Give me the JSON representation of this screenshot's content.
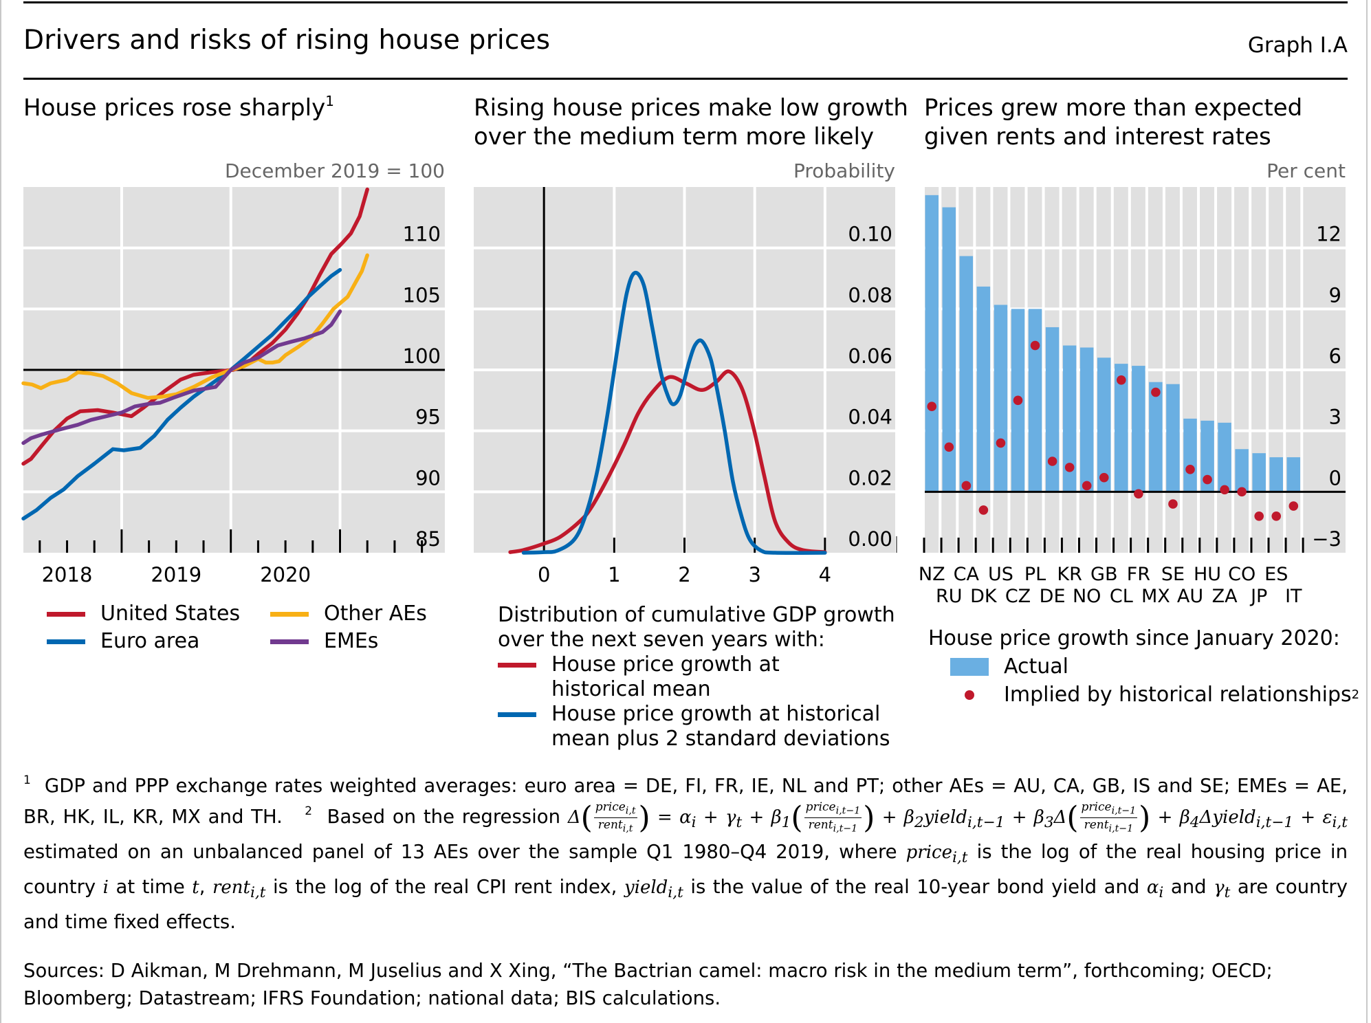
{
  "header": {
    "title": "Drivers and risks of rising house prices",
    "graph_id": "Graph I.A"
  },
  "colors": {
    "plot_bg": "#e0e0e0",
    "grid": "#ffffff",
    "united_states": "#c0192c",
    "euro_area": "#0067b1",
    "other_aes": "#f8b015",
    "emes": "#713a8f",
    "actual_bar": "#6aafe2",
    "implied_dot": "#c0192c",
    "unit_label": "#666666"
  },
  "panels": [
    {
      "title": "House prices rose sharply",
      "title_footnote": "1",
      "unit": "December 2019 = 100",
      "legend": [
        {
          "label": "United States",
          "series": "united_states"
        },
        {
          "label": "Euro area",
          "series": "euro_area"
        },
        {
          "label": "Other AEs",
          "series": "other_aes"
        },
        {
          "label": "EMEs",
          "series": "emes"
        }
      ]
    },
    {
      "title_lines": [
        "Rising house prices make low growth",
        "over the medium term more likely"
      ],
      "unit": "Probability",
      "legend_heading": [
        "Distribution of cumulative GDP growth",
        "over the next seven years with:"
      ],
      "legend": [
        {
          "lines": [
            "House price growth at",
            "historical mean"
          ],
          "series": "historical_mean"
        },
        {
          "lines": [
            "House price growth at historical",
            "mean plus 2 standard deviations"
          ],
          "series": "mean_plus_2sd"
        }
      ]
    },
    {
      "title_lines": [
        "Prices grew more than expected",
        "given rents and interest rates"
      ],
      "unit": "Per cent",
      "legend_heading": "House price growth since January 2020:",
      "legend": [
        {
          "label": "Actual",
          "series": "actual"
        },
        {
          "label": "Implied by historical relationships",
          "footnote": "2",
          "series": "implied"
        }
      ]
    }
  ],
  "chart_data": [
    {
      "type": "line",
      "title": "House prices rose sharply",
      "ylabel": "December 2019 = 100",
      "xlabel": "",
      "xlim": [
        2018.1,
        2021.96
      ],
      "ylim": [
        85,
        115
      ],
      "yticks": [
        85,
        90,
        95,
        100,
        105,
        110
      ],
      "xtick_labels": [
        {
          "label": "2018",
          "at": 2018.5
        },
        {
          "label": "2019",
          "at": 2019.5
        },
        {
          "label": "2020",
          "at": 2020.5
        }
      ],
      "major_ticks": [
        2019,
        2020,
        2021
      ],
      "minor_ticks": [
        2018.25,
        2018.5,
        2018.75,
        2019.25,
        2019.5,
        2019.75,
        2020.25,
        2020.5,
        2020.75,
        2021.25,
        2021.5,
        2021.75
      ],
      "reference_line": 100,
      "grid": true,
      "legend_position": "bottom",
      "series": [
        {
          "name": "United States",
          "key": "united_states",
          "x": [
            2018.1,
            2018.17,
            2018.27,
            2018.38,
            2018.5,
            2018.62,
            2018.78,
            2018.92,
            2019.09,
            2019.2,
            2019.4,
            2019.54,
            2019.66,
            2019.82,
            2020.02,
            2020.12,
            2020.25,
            2020.38,
            2020.5,
            2020.61,
            2020.71,
            2020.82,
            2020.92,
            2021.02,
            2021.1,
            2021.18,
            2021.25
          ],
          "y": [
            92.3,
            92.7,
            93.8,
            95.0,
            96.0,
            96.6,
            96.7,
            96.5,
            96.2,
            96.9,
            98.3,
            99.2,
            99.6,
            99.8,
            100.0,
            100.3,
            101.3,
            102.2,
            103.3,
            104.6,
            106.0,
            107.9,
            109.5,
            110.4,
            111.2,
            112.6,
            114.8
          ]
        },
        {
          "name": "Euro area",
          "key": "euro_area",
          "x": [
            2018.1,
            2018.22,
            2018.35,
            2018.47,
            2018.6,
            2018.75,
            2018.92,
            2019.02,
            2019.17,
            2019.3,
            2019.42,
            2019.54,
            2019.66,
            2019.83,
            2020.0,
            2020.12,
            2020.25,
            2020.38,
            2020.5,
            2020.6,
            2020.71,
            2020.82,
            2020.92,
            2021.0
          ],
          "y": [
            87.8,
            88.5,
            89.5,
            90.2,
            91.3,
            92.3,
            93.5,
            93.4,
            93.6,
            94.6,
            95.9,
            96.9,
            97.8,
            98.9,
            100.0,
            100.9,
            101.9,
            102.9,
            104.0,
            104.9,
            106.0,
            106.9,
            107.7,
            108.2
          ]
        },
        {
          "name": "Other AEs",
          "key": "other_aes",
          "x": [
            2018.1,
            2018.18,
            2018.26,
            2018.35,
            2018.5,
            2018.6,
            2018.72,
            2018.83,
            2018.96,
            2019.09,
            2019.24,
            2019.37,
            2019.5,
            2019.66,
            2019.83,
            2020.0,
            2020.12,
            2020.25,
            2020.32,
            2020.38,
            2020.44,
            2020.5,
            2020.62,
            2020.74,
            2020.84,
            2020.94,
            2021.07,
            2021.15,
            2021.2,
            2021.25
          ],
          "y": [
            98.9,
            98.8,
            98.5,
            98.9,
            99.2,
            99.8,
            99.7,
            99.5,
            98.9,
            98.1,
            97.7,
            97.8,
            98.0,
            98.6,
            99.4,
            100.0,
            100.3,
            100.9,
            100.6,
            100.6,
            100.7,
            101.2,
            101.9,
            102.7,
            103.8,
            105.0,
            106.0,
            107.3,
            108.1,
            109.4
          ]
        },
        {
          "name": "EMEs",
          "key": "emes",
          "x": [
            2018.1,
            2018.17,
            2018.27,
            2018.43,
            2018.6,
            2018.72,
            2018.86,
            2019.0,
            2019.12,
            2019.24,
            2019.35,
            2019.5,
            2019.66,
            2019.86,
            2020.0,
            2020.12,
            2020.25,
            2020.43,
            2020.55,
            2020.68,
            2020.84,
            2020.92,
            2021.0
          ],
          "y": [
            94.0,
            94.4,
            94.7,
            95.1,
            95.5,
            95.9,
            96.2,
            96.5,
            97.0,
            97.2,
            97.3,
            97.8,
            98.3,
            98.6,
            100.0,
            100.6,
            101.0,
            102.0,
            102.3,
            102.6,
            103.1,
            103.7,
            104.8
          ]
        }
      ]
    },
    {
      "type": "line",
      "title": "Rising house prices make low growth over the medium term more likely",
      "ylabel": "Probability",
      "xlabel": "",
      "xlim": [
        -1,
        5
      ],
      "ylim": [
        0,
        0.12
      ],
      "yticks": [
        0.0,
        0.02,
        0.04,
        0.06,
        0.08,
        0.1
      ],
      "ytick_labels": [
        "0.00",
        "0.02",
        "0.04",
        "0.06",
        "0.08",
        "0.10"
      ],
      "xticks": [
        0,
        1,
        2,
        3,
        4
      ],
      "xtick_labels": [
        "0",
        "1",
        "2",
        "3",
        "4"
      ],
      "reference_line_x": 0,
      "grid": true,
      "legend_position": "bottom",
      "series": [
        {
          "name": "House price growth at historical mean",
          "key": "historical_mean",
          "color_key": "united_states",
          "x": [
            -0.48,
            -0.29,
            0.0,
            0.23,
            0.51,
            0.67,
            0.9,
            1.14,
            1.34,
            1.54,
            1.78,
            2.02,
            2.25,
            2.45,
            2.63,
            2.81,
            2.97,
            3.13,
            3.29,
            3.48,
            3.68,
            4.0
          ],
          "y": [
            0.0002,
            0.0009,
            0.003,
            0.0052,
            0.0103,
            0.0147,
            0.0241,
            0.0353,
            0.0457,
            0.0526,
            0.0576,
            0.0556,
            0.0534,
            0.056,
            0.0595,
            0.0543,
            0.0422,
            0.0259,
            0.0103,
            0.0034,
            0.0009,
            0.0002
          ]
        },
        {
          "name": "House price growth at historical mean plus 2 standard deviations",
          "key": "mean_plus_2sd",
          "color_key": "euro_area",
          "x": [
            -0.29,
            0.0,
            0.19,
            0.43,
            0.59,
            0.75,
            0.9,
            1.06,
            1.18,
            1.29,
            1.42,
            1.54,
            1.66,
            1.76,
            1.84,
            1.94,
            2.06,
            2.15,
            2.25,
            2.37,
            2.45,
            2.57,
            2.69,
            2.81,
            2.93,
            3.09,
            3.29,
            4.0
          ],
          "y": [
            0.0,
            0.0002,
            0.0007,
            0.0043,
            0.0121,
            0.0259,
            0.0448,
            0.069,
            0.0853,
            0.0918,
            0.0879,
            0.0741,
            0.0595,
            0.0517,
            0.0487,
            0.0517,
            0.0621,
            0.0681,
            0.0694,
            0.0638,
            0.0552,
            0.0405,
            0.0233,
            0.0121,
            0.0043,
            0.0007,
            0.0,
            0.0
          ]
        }
      ]
    },
    {
      "type": "bar",
      "title": "Prices grew more than expected given rents and interest rates",
      "ylabel": "Per cent",
      "xlabel": "",
      "ylim": [
        -3,
        15
      ],
      "yticks": [
        -3,
        0,
        3,
        6,
        9,
        12
      ],
      "ytick_labels": [
        "−3",
        "0",
        "3",
        "6",
        "9",
        "12"
      ],
      "grid": true,
      "legend_position": "bottom",
      "categories": [
        "NZ",
        "RU",
        "CA",
        "DK",
        "US",
        "CZ",
        "PL",
        "DE",
        "KR",
        "NO",
        "GB",
        "CL",
        "FR",
        "MX",
        "SE",
        "AU",
        "HU",
        "ZA",
        "CO",
        "JP",
        "ES",
        "IT"
      ],
      "series": [
        {
          "name": "Actual",
          "key": "actual",
          "kind": "bar",
          "values": [
            14.6,
            14.0,
            11.6,
            10.1,
            9.2,
            9.0,
            9.0,
            8.1,
            7.2,
            7.1,
            6.6,
            6.3,
            6.2,
            5.4,
            5.3,
            3.6,
            3.5,
            3.4,
            2.1,
            1.9,
            1.7,
            1.7
          ]
        },
        {
          "name": "Implied by historical relationships",
          "key": "implied",
          "kind": "dot",
          "values": [
            4.2,
            2.2,
            0.3,
            -0.9,
            2.4,
            4.5,
            7.2,
            1.5,
            1.2,
            0.3,
            0.7,
            5.5,
            -0.1,
            4.9,
            -0.6,
            1.1,
            0.6,
            0.1,
            0.0,
            -1.2,
            -1.2,
            -0.7
          ]
        }
      ]
    }
  ],
  "footnotes": {
    "fn1_marker": "1",
    "fn1_text": "GDP and PPP exchange rates weighted averages: euro area = DE, FI, FR, IE, NL and PT; other AEs = AU, CA, GB, IS and SE; EMEs = AE, BR, HK, IL, KR, MX and TH.",
    "fn2_marker": "2",
    "fn2_intro": "Based on the regression",
    "fn2_after_equation": "estimated on an unbalanced panel of 13 AEs over the sample Q1 1980–Q4 2019, where",
    "fn2_price_def": "is the log of the real housing price in country",
    "fn2_i_at_time": "at time",
    "fn2_rent_def": "is the log of the real CPI rent index,",
    "fn2_yield_def": "is the value of the real 10-year bond yield and",
    "fn2_and": "and",
    "fn2_tail": "are country and time fixed effects.",
    "math": {
      "delta": "Δ",
      "price_it": "price",
      "rent_it": "rent",
      "yield": "yield",
      "sub_it": "i,t",
      "sub_it1": "i,t−1",
      "alpha": "α",
      "gamma": "γ",
      "beta": "β",
      "eps": "ε",
      "i": "i",
      "t": "t"
    }
  },
  "sources": "Sources: D Aikman, M Drehmann, M Juselius and X Xing, “The Bactrian camel: macro risk in the medium term”, forthcoming; OECD; Bloomberg; Datastream; IFRS Foundation; national data; BIS calculations."
}
